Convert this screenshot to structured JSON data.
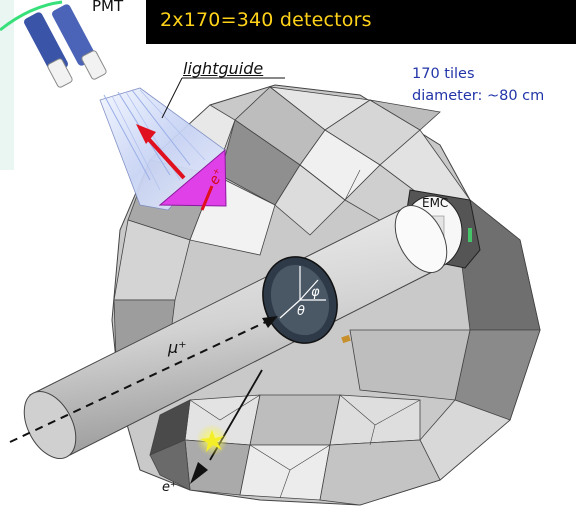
{
  "banner": {
    "text": "2x170=340 detectors",
    "bg": "#000000",
    "fg": "#ffd21a"
  },
  "labels": {
    "pmt": "PMT",
    "lightguide": "lightguide",
    "tiles_count": "170 tiles",
    "tiles_diameter": "diameter: ~80 cm",
    "emc": "EMC",
    "muon": "μ⁺",
    "positron_bottom": "e⁺",
    "positron_guide": "e⁺",
    "phi": "φ",
    "theta": "θ"
  },
  "colors": {
    "tile_light": "#e4e4e4",
    "tile_mid": "#bdbdbd",
    "tile_dark": "#8c8c8c",
    "beam_pipe": "#d9d9d9",
    "arrow_red": "#e0101e",
    "scintillator_magenta": "#e040e8",
    "hit_flash": "#f4ee28",
    "annotation_blue": "#2235a8"
  }
}
